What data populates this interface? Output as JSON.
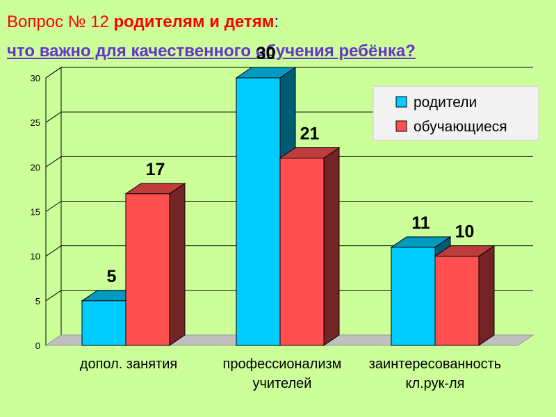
{
  "header": {
    "question_prefix": "Вопрос № 12 ",
    "audience": "родителям и детям",
    "colon": ":",
    "subtitle": "что важно для качественного обучения ребёнка?"
  },
  "colors": {
    "background": "#ccff99",
    "title_red": "#ff0000",
    "subtitle_purple": "#6633cc",
    "parents": "#00ccff",
    "students": "#ff5050"
  },
  "chart_data": {
    "type": "bar",
    "categories": [
      [
        "допол. занятия"
      ],
      [
        "профессионализм",
        "учителей"
      ],
      [
        "заинтересованность",
        "кл.рук-ля"
      ]
    ],
    "series": [
      {
        "name": "родители",
        "values": [
          5,
          30,
          11
        ]
      },
      {
        "name": "обучающиеся",
        "values": [
          17,
          21,
          10
        ]
      }
    ],
    "ylim": [
      0,
      30
    ],
    "yticks": [
      "0",
      "5",
      "10",
      "15",
      "20",
      "25",
      "30"
    ],
    "grid": true,
    "legend_position": "top-right",
    "three_d": true
  }
}
